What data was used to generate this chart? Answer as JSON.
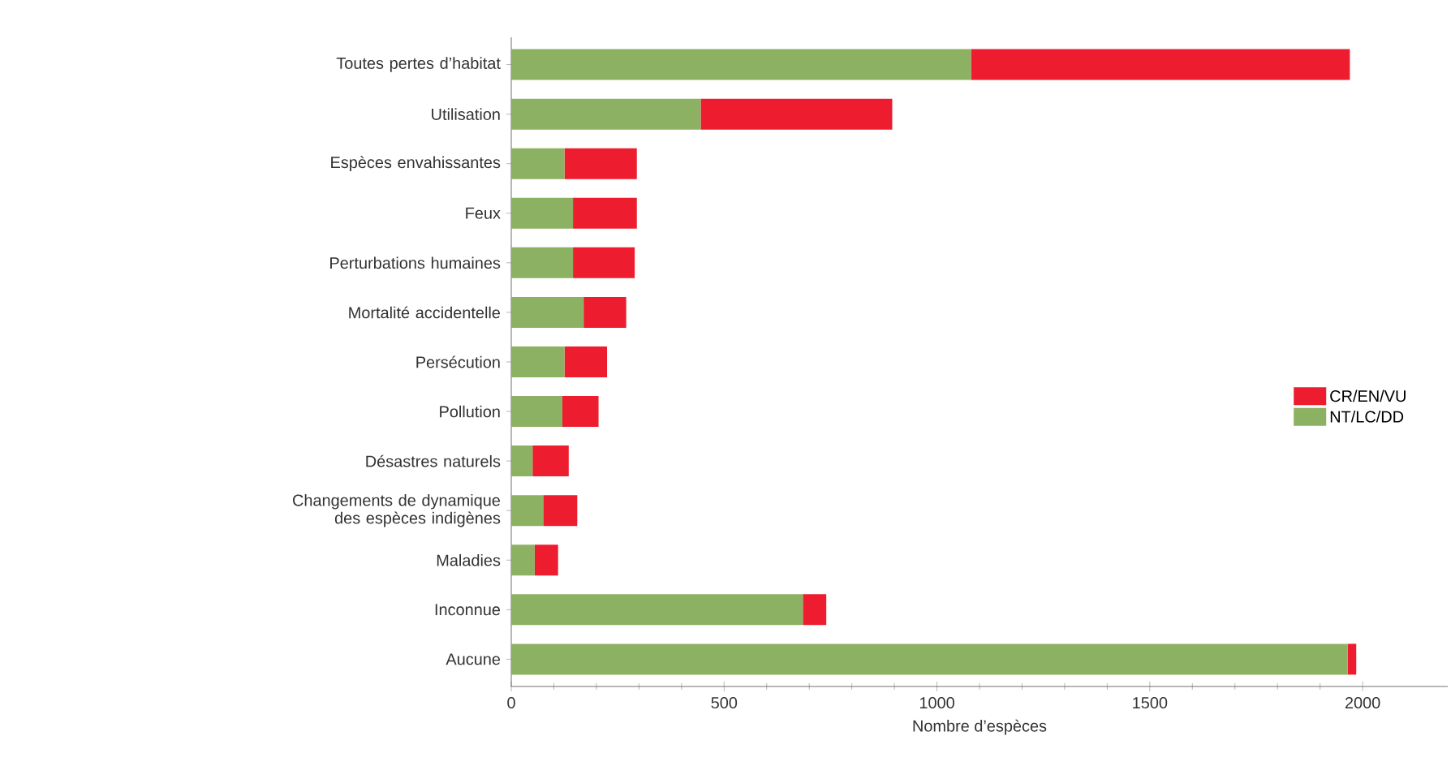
{
  "chart_data": {
    "type": "bar",
    "orientation": "horizontal",
    "stacked": true,
    "categories": [
      "Toutes pertes d’habitat",
      "Utilisation",
      "Espèces envahissantes",
      "Feux",
      "Perturbations humaines",
      "Mortalité accidentelle",
      "Persécution",
      "Pollution",
      "Désastres naturels",
      "Changements de dynamique des espèces indigènes",
      "Maladies",
      "Inconnue",
      "Aucune"
    ],
    "series": [
      {
        "name": "NT/LC/DD",
        "color": "#8db162",
        "values": [
          1080,
          445,
          125,
          145,
          145,
          170,
          125,
          120,
          50,
          75,
          55,
          685,
          1965
        ]
      },
      {
        "name": "CR/EN/VU",
        "color": "#ed1c2e",
        "values": [
          890,
          450,
          170,
          150,
          145,
          100,
          100,
          85,
          85,
          80,
          55,
          55,
          20
        ]
      }
    ],
    "xlim": [
      0,
      2200
    ],
    "xticks": [
      0,
      500,
      1000,
      1500,
      2000
    ],
    "xlabel": "Nombre d’espèces",
    "legend": "right"
  }
}
